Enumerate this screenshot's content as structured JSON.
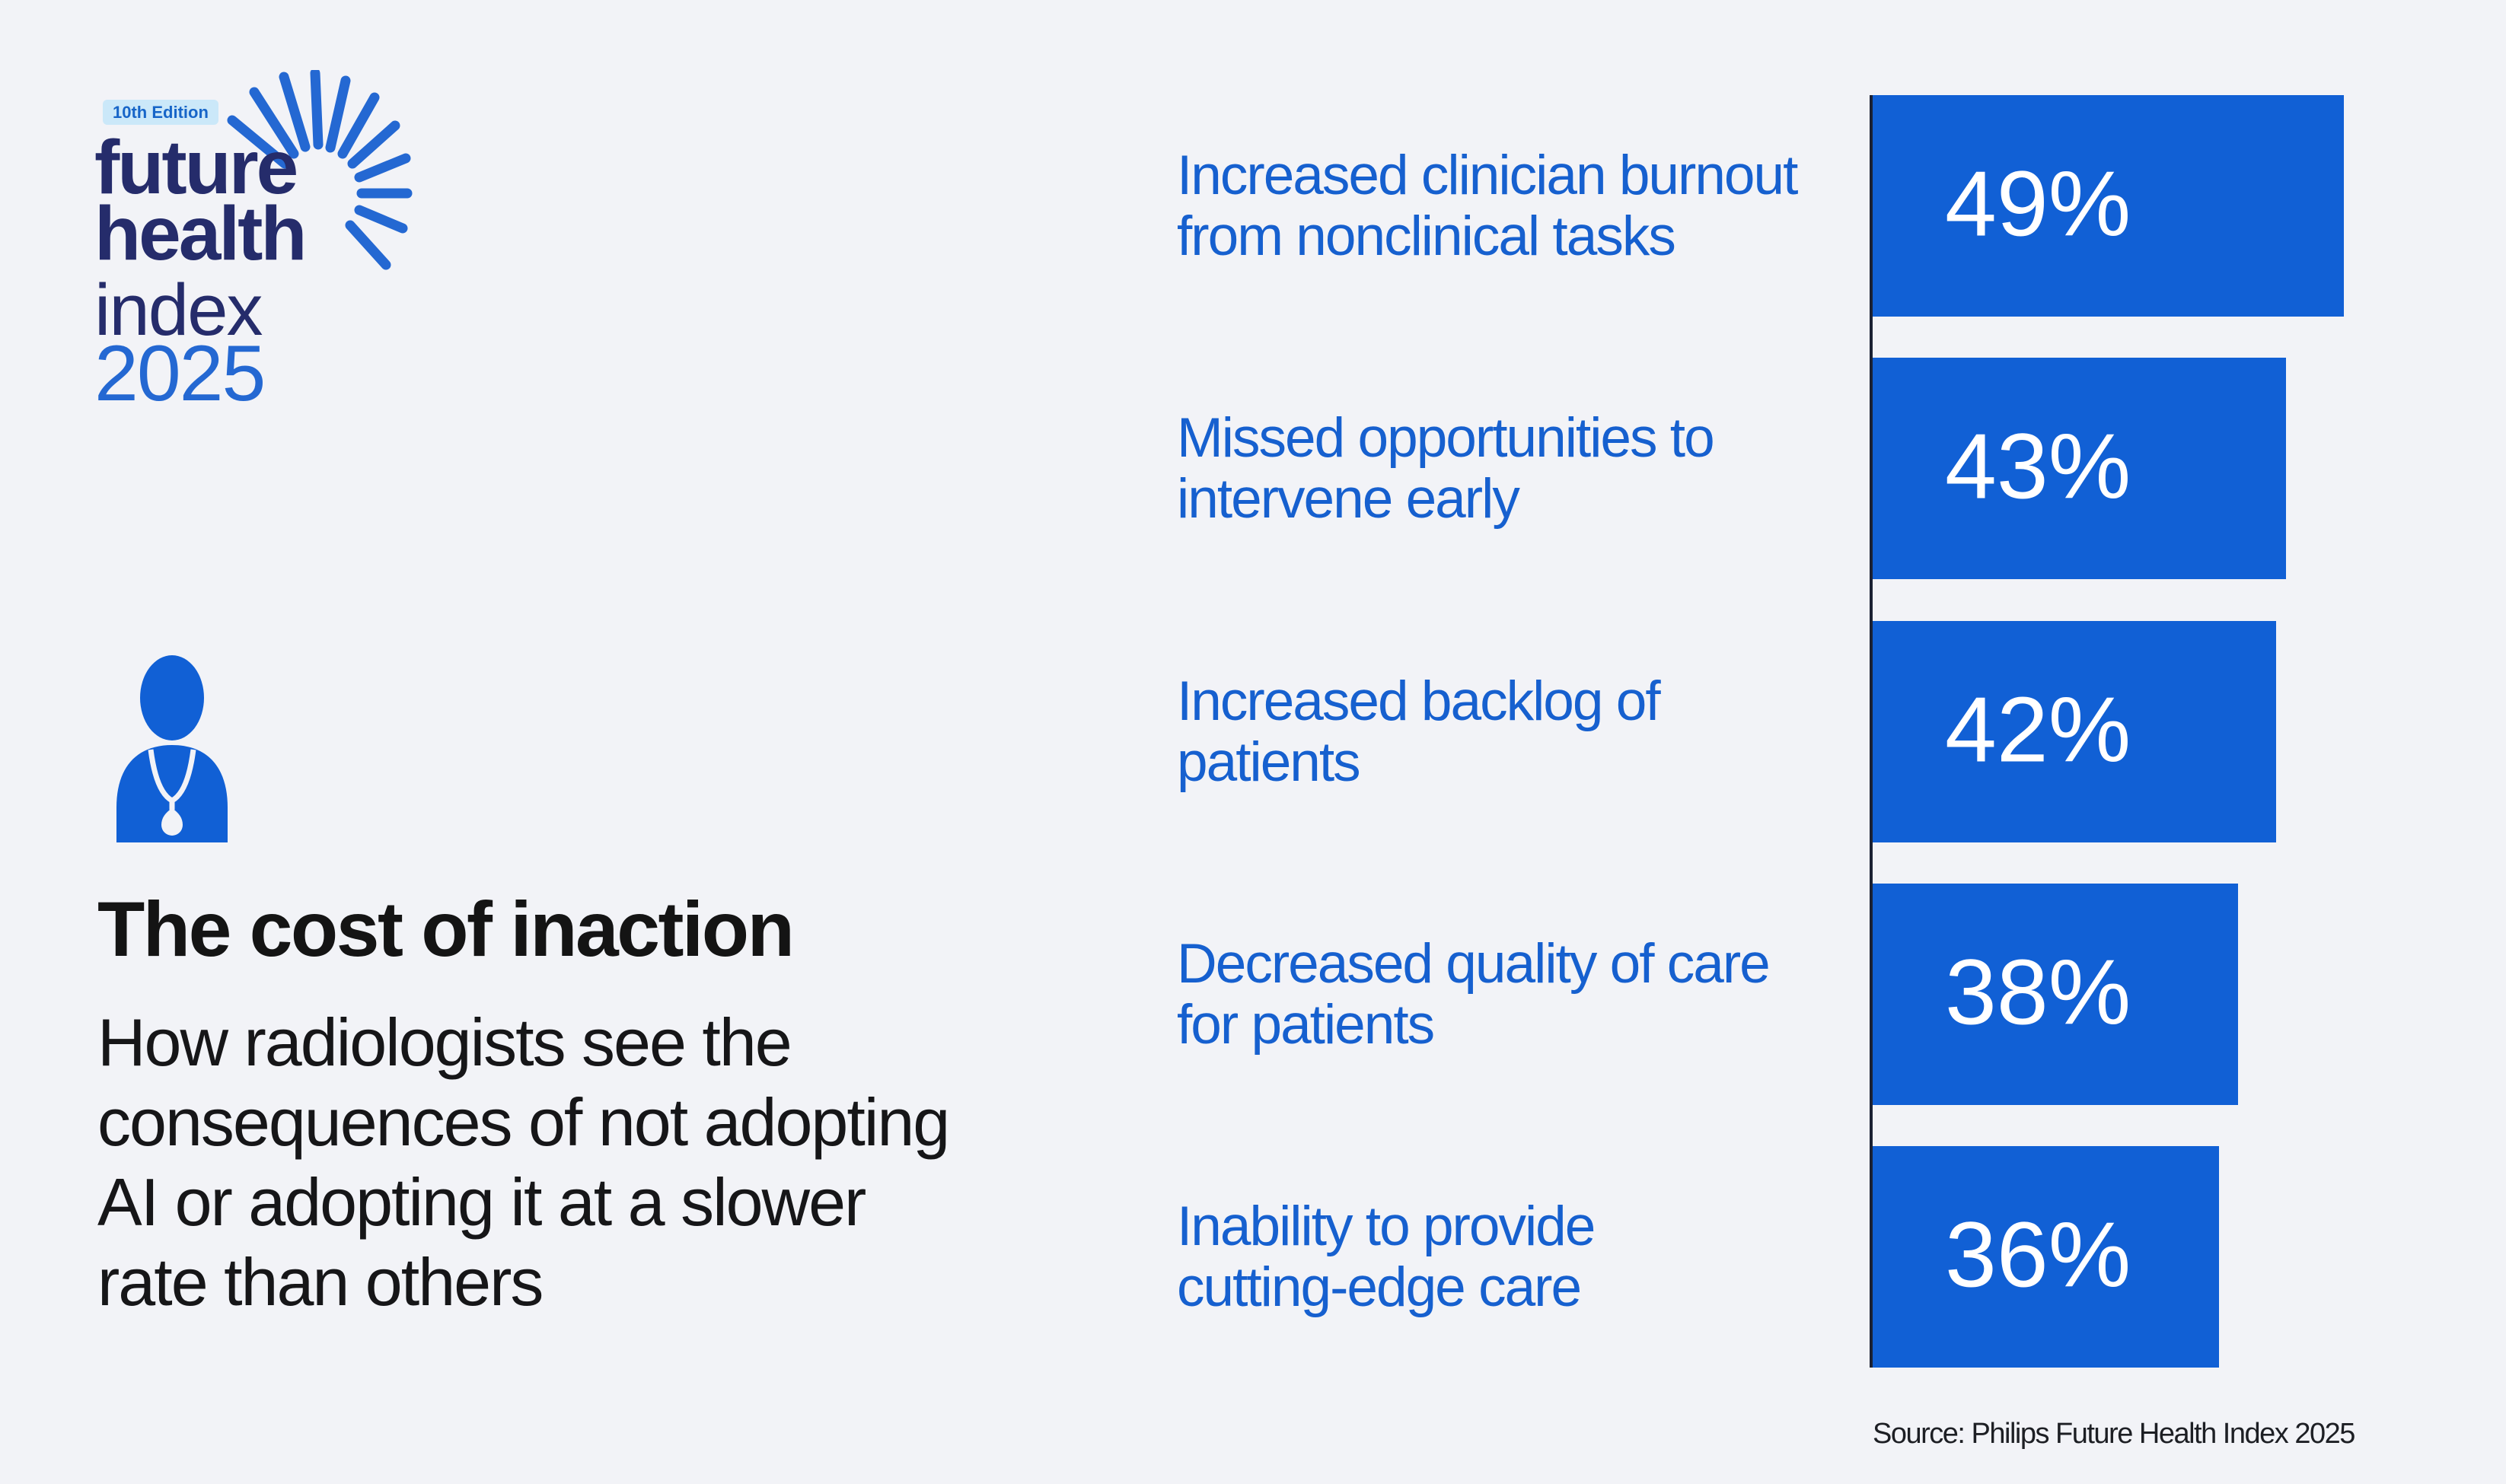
{
  "page": {
    "background_color": "#f2f3f7"
  },
  "branding": {
    "edition_badge": "10th Edition",
    "logo_line1": "future",
    "logo_line2": "health",
    "logo_line3": "index",
    "logo_year": "2025",
    "navy_color": "#252c6b",
    "bright_blue_color": "#2468d2",
    "badge_bg_color": "#cbe8f9",
    "badge_text_color": "#1765c8"
  },
  "icons": {
    "starburst": "starburst-rays-icon",
    "clinician": "clinician-stethoscope-icon"
  },
  "main": {
    "heading": "The cost of inaction",
    "description": "How radiologists see the consequences of not adopting AI or adopting it at a slower rate than others",
    "description_lines": [
      "How radiologists see the",
      "consequences of not adopting",
      "AI or adopting it at a slower",
      "rate than others"
    ],
    "heading_color": "#141414"
  },
  "chart_data": {
    "type": "bar",
    "orientation": "horizontal",
    "title": "",
    "xlabel": "",
    "ylabel": "",
    "categories": [
      "Increased clinician burnout from nonclinical tasks",
      "Missed opportunities to intervene early",
      "Increased backlog of patients",
      "Decreased quality of care for patients",
      "Inability to provide cutting-edge care"
    ],
    "category_lines": [
      [
        "Increased clinician burnout",
        "from nonclinical tasks"
      ],
      [
        "Missed opportunities to",
        "intervene early"
      ],
      [
        "Increased backlog of",
        "patients"
      ],
      [
        "Decreased quality of care",
        "for patients"
      ],
      [
        "Inability to provide",
        "cutting-edge care"
      ]
    ],
    "values": [
      49,
      43,
      42,
      38,
      36
    ],
    "value_labels": [
      "49%",
      "43%",
      "42%",
      "38%",
      "36%"
    ],
    "unit": "%",
    "xlim": [
      0,
      50
    ],
    "grid": false,
    "legend": false,
    "bar_color": "#1160d5",
    "category_label_color": "#1660cf",
    "value_label_color": "#ffffff",
    "axis_line_color": "#1b2133"
  },
  "footer": {
    "source": "Source: Philips Future Health Index 2025"
  }
}
